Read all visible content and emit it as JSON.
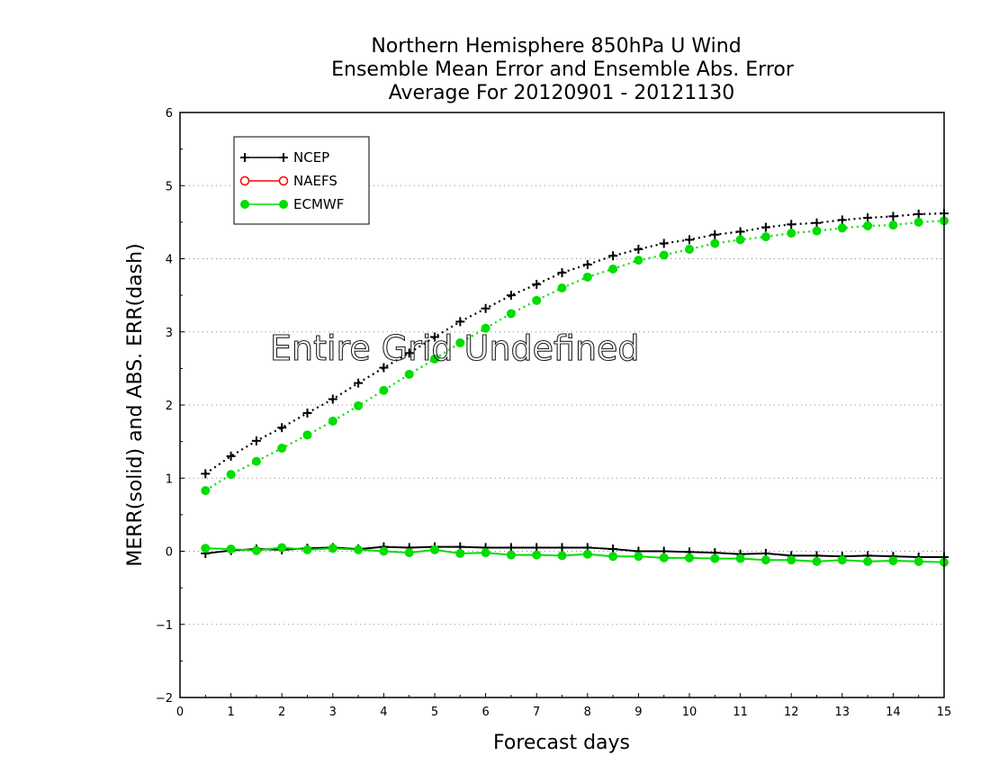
{
  "chart_data": {
    "type": "line",
    "title": [
      "Northern Hemisphere 850hPa U Wind",
      "Ensemble Mean Error and Ensemble Abs. Error",
      "Average For 20120901 - 20121130"
    ],
    "xlabel": "Forecast days",
    "ylabel": "MERR(solid) and ABS. ERR(dash)",
    "xlim": [
      0,
      15
    ],
    "ylim": [
      -2,
      6
    ],
    "xticks": [
      "0",
      "1",
      "2",
      "3",
      "4",
      "5",
      "6",
      "7",
      "8",
      "9",
      "10",
      "11",
      "12",
      "13",
      "14",
      "15"
    ],
    "yticks": [
      "−2",
      "−1",
      "0",
      "1",
      "2",
      "3",
      "4",
      "5",
      "6"
    ],
    "grid": "horizontal dotted",
    "legend_position": "top-left",
    "annotation": "Entire Grid Undefined",
    "x": [
      0.5,
      1,
      1.5,
      2,
      2.5,
      3,
      3.5,
      4,
      4.5,
      5,
      5.5,
      6,
      6.5,
      7,
      7.5,
      8,
      8.5,
      9,
      9.5,
      10,
      10.5,
      11,
      11.5,
      12,
      12.5,
      13,
      13.5,
      14,
      14.5,
      15
    ],
    "series": [
      {
        "name": "NCEP",
        "color": "#000000",
        "marker": "plus",
        "merr": [
          -0.03,
          0.01,
          0.03,
          0.02,
          0.04,
          0.05,
          0.03,
          0.06,
          0.05,
          0.06,
          0.06,
          0.05,
          0.05,
          0.05,
          0.05,
          0.05,
          0.03,
          0.0,
          0.0,
          -0.01,
          -0.02,
          -0.04,
          -0.03,
          -0.06,
          -0.06,
          -0.07,
          -0.06,
          -0.07,
          -0.08,
          -0.08
        ],
        "abs_err": [
          1.06,
          1.3,
          1.51,
          1.69,
          1.89,
          2.08,
          2.3,
          2.51,
          2.71,
          2.93,
          3.14,
          3.32,
          3.5,
          3.65,
          3.81,
          3.92,
          4.04,
          4.13,
          4.21,
          4.26,
          4.33,
          4.37,
          4.43,
          4.47,
          4.49,
          4.53,
          4.56,
          4.58,
          4.61,
          4.62
        ]
      },
      {
        "name": "NAEFS",
        "color": "#ff0000",
        "marker": "open-circle",
        "merr": [],
        "abs_err": []
      },
      {
        "name": "ECMWF",
        "color": "#00dd00",
        "marker": "filled-circle",
        "merr": [
          0.04,
          0.03,
          0.01,
          0.05,
          0.02,
          0.04,
          0.02,
          0.0,
          -0.02,
          0.02,
          -0.03,
          -0.02,
          -0.05,
          -0.05,
          -0.06,
          -0.04,
          -0.07,
          -0.07,
          -0.09,
          -0.09,
          -0.1,
          -0.1,
          -0.12,
          -0.12,
          -0.14,
          -0.12,
          -0.14,
          -0.13,
          -0.14,
          -0.15
        ],
        "abs_err": [
          0.83,
          1.05,
          1.23,
          1.41,
          1.59,
          1.78,
          1.99,
          2.2,
          2.42,
          2.63,
          2.85,
          3.05,
          3.25,
          3.43,
          3.6,
          3.75,
          3.86,
          3.98,
          4.05,
          4.13,
          4.21,
          4.26,
          4.3,
          4.35,
          4.38,
          4.42,
          4.45,
          4.46,
          4.5,
          4.52
        ]
      }
    ]
  }
}
